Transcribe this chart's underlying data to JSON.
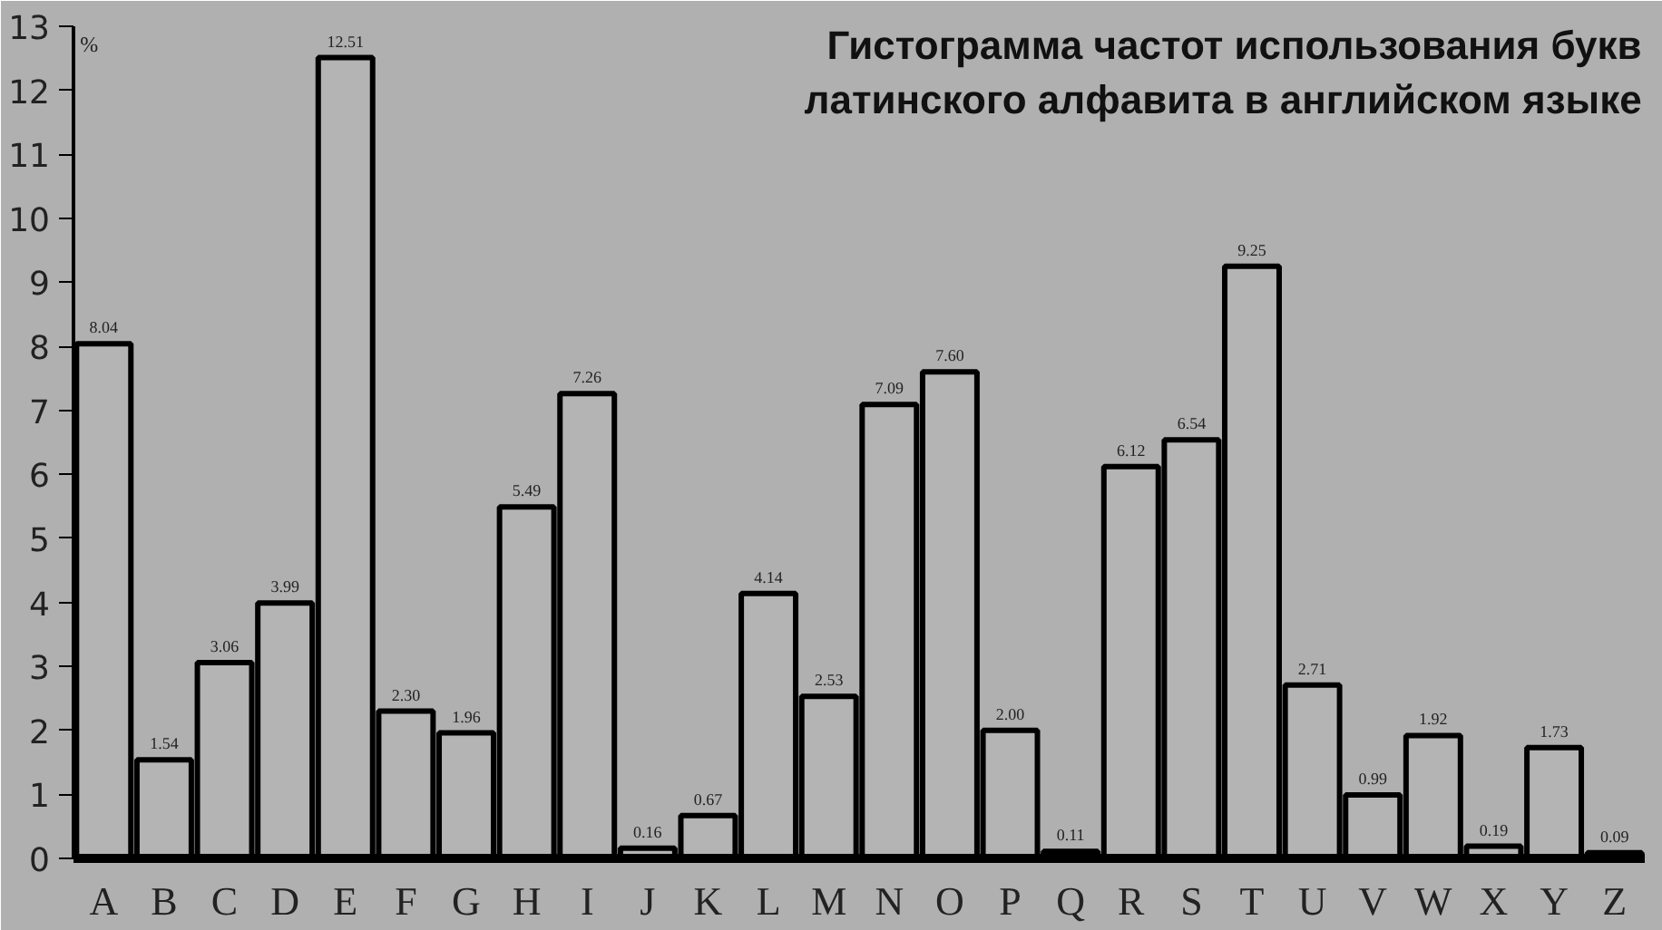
{
  "chart_data": {
    "type": "bar",
    "title": "Гистограмма частот использования букв латинского алфавита в английском языке",
    "ylabel": "%",
    "categories": [
      "A",
      "B",
      "C",
      "D",
      "E",
      "F",
      "G",
      "H",
      "I",
      "J",
      "K",
      "L",
      "M",
      "N",
      "O",
      "P",
      "Q",
      "R",
      "S",
      "T",
      "U",
      "V",
      "W",
      "X",
      "Y",
      "Z"
    ],
    "values": [
      8.04,
      1.54,
      3.06,
      3.99,
      12.51,
      2.3,
      1.96,
      5.49,
      7.26,
      0.16,
      0.67,
      4.14,
      2.53,
      7.09,
      7.6,
      2.0,
      0.11,
      6.12,
      6.54,
      9.25,
      2.71,
      0.99,
      1.92,
      0.19,
      1.73,
      0.09
    ],
    "value_labels": [
      "8.04",
      "1.54",
      "3.06",
      "3.99",
      "12.51",
      "2.30",
      "1.96",
      "5.49",
      "7.26",
      "0.16",
      "0.67",
      "4.14",
      "2.53",
      "7.09",
      "7.60",
      "2.00",
      "0.11",
      "6.12",
      "6.54",
      "9.25",
      "2.71",
      "0.99",
      "1.92",
      "0.19",
      "1.73",
      "0.09"
    ],
    "color": "#b4b4b4",
    "ylim": [
      0,
      13
    ],
    "yticks": [
      0,
      1,
      2,
      3,
      4,
      5,
      6,
      7,
      8,
      9,
      10,
      11,
      12,
      13
    ],
    "grid": false
  }
}
